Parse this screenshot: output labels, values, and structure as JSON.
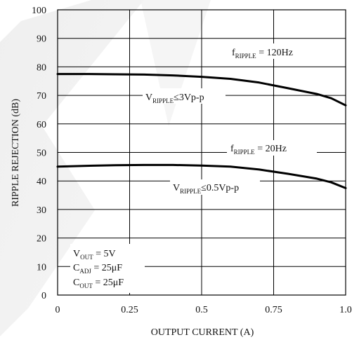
{
  "chart_data": {
    "type": "line",
    "xlabel": "OUTPUT CURRENT (A)",
    "ylabel": "RIPPLE REJECTION (dB)",
    "xlim": [
      0,
      1.0
    ],
    "ylim": [
      0,
      100
    ],
    "x_ticks": [
      "0",
      "0.25",
      "0.5",
      "0.75",
      "1.0"
    ],
    "y_ticks": [
      "0",
      "10",
      "20",
      "30",
      "40",
      "50",
      "60",
      "70",
      "80",
      "90",
      "100"
    ],
    "grid": true,
    "series": [
      {
        "name": "fRIPPLE = 120Hz",
        "x": [
          0,
          0.1,
          0.2,
          0.3,
          0.4,
          0.5,
          0.6,
          0.7,
          0.8,
          0.9,
          0.95,
          1.0
        ],
        "y": [
          77.5,
          77.5,
          77.4,
          77.3,
          77.0,
          76.5,
          75.8,
          74.5,
          72.5,
          70.5,
          69.0,
          66.5
        ]
      },
      {
        "name": "fRIPPLE = 20Hz",
        "x": [
          0,
          0.1,
          0.2,
          0.3,
          0.4,
          0.5,
          0.6,
          0.7,
          0.8,
          0.9,
          0.95,
          1.0
        ],
        "y": [
          45.0,
          45.3,
          45.5,
          45.6,
          45.6,
          45.4,
          45.0,
          44.0,
          42.5,
          40.8,
          39.5,
          37.5
        ]
      }
    ],
    "annotations": {
      "f120": {
        "main": "f",
        "sub": "RIPPLE",
        "rest": " = 120Hz"
      },
      "v3": {
        "main": "V",
        "sub": "RIPPLE",
        "rest": "≤3Vp-p"
      },
      "f20": {
        "main": "f",
        "sub": "RIPPLE",
        "rest": " = 20Hz"
      },
      "v05": {
        "main": "V",
        "sub": "RIPPLE",
        "rest": "≤0.5Vp-p"
      },
      "vout": {
        "main": "V",
        "sub": "OUT",
        "rest": " = 5V"
      },
      "cadj": {
        "main": "C",
        "sub": "ADJ",
        "rest": " = 25μF"
      },
      "cout": {
        "main": "C",
        "sub": "OUT",
        "rest": " = 25μF"
      }
    }
  }
}
